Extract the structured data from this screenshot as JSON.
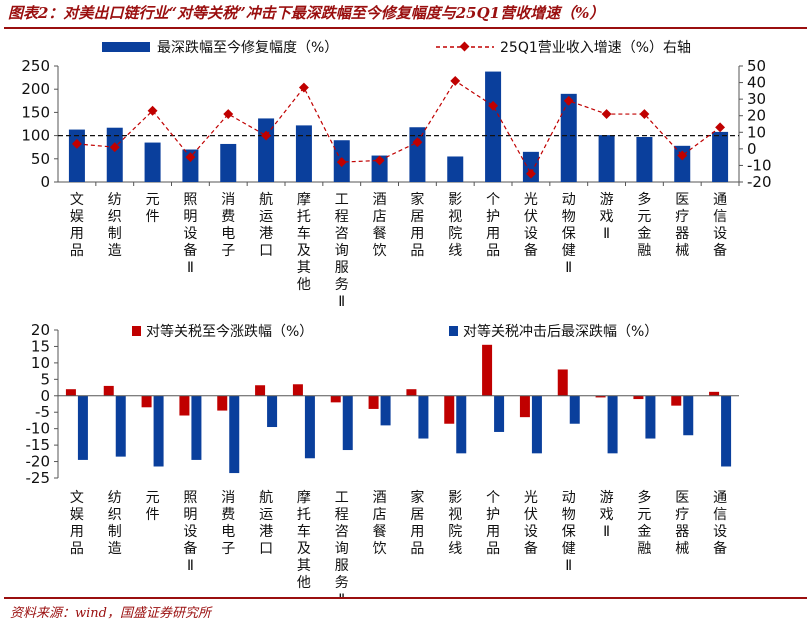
{
  "title": "图表2：对美出口链行业“对等关税”冲击下最深跌幅至今修复幅度与25Q1营收增速（%）",
  "source": "资料来源：wind，国盛证券研究所",
  "colors": {
    "bar_blue": "#0a3f9c",
    "bar_red": "#c00000",
    "line_red": "#c00000",
    "title": "#9a0f0f"
  },
  "chart_data": [
    {
      "type": "bar",
      "categories": [
        "文娱用品",
        "纺织制造",
        "元件",
        "照明设备Ⅱ",
        "消费电子",
        "航运港口",
        "摩托车及其他",
        "工程咨询服务Ⅱ",
        "酒店餐饮",
        "家居用品",
        "影视院线",
        "个护用品",
        "光伏设备",
        "动物保健Ⅱ",
        "游戏Ⅱ",
        "多元金融",
        "医疗器械",
        "通信设备"
      ],
      "series": [
        {
          "name": "最深跌幅至今修复幅度（%）",
          "axis": "left",
          "kind": "bar",
          "values": [
            113,
            117,
            85,
            70,
            82,
            137,
            122,
            90,
            57,
            118,
            55,
            238,
            65,
            190,
            101,
            97,
            78,
            108
          ]
        },
        {
          "name": "25Q1营业收入增速（%）右轴",
          "axis": "right",
          "kind": "line",
          "values": [
            3,
            1,
            23,
            -5,
            21,
            8,
            37,
            -8,
            -7,
            4,
            41,
            26,
            -15,
            29,
            21,
            21,
            -4,
            13
          ]
        }
      ],
      "ylim_left": [
        0,
        250
      ],
      "yticks_left": [
        0,
        50,
        100,
        150,
        200,
        250
      ],
      "ylim_right": [
        -20,
        50
      ],
      "yticks_right": [
        -20,
        -10,
        0,
        10,
        20,
        30,
        40,
        50
      ],
      "reference_line": {
        "axis": "left",
        "value": 100,
        "style": "dashed"
      },
      "legend_position": "top"
    },
    {
      "type": "bar",
      "categories": [
        "文娱用品",
        "纺织制造",
        "元件",
        "照明设备Ⅱ",
        "消费电子",
        "航运港口",
        "摩托车及其他",
        "工程咨询服务Ⅱ",
        "酒店餐饮",
        "家居用品",
        "影视院线",
        "个护用品",
        "光伏设备",
        "动物保健Ⅱ",
        "游戏Ⅱ",
        "多元金融",
        "医疗器械",
        "通信设备"
      ],
      "series": [
        {
          "name": "对等关税至今涨跌幅（%）",
          "color": "#c00000",
          "values": [
            2,
            3,
            -3.5,
            -6,
            -4.5,
            3.2,
            3.5,
            -2,
            -4,
            2,
            -8.5,
            15.5,
            -6.5,
            8,
            -0.5,
            -1,
            -3,
            1.2
          ]
        },
        {
          "name": "对等关税冲击后最深跌幅（%）",
          "color": "#0a3f9c",
          "values": [
            -19.5,
            -18.5,
            -21.5,
            -19.5,
            -23.5,
            -9.5,
            -19,
            -16.5,
            -9,
            -13,
            -17.5,
            -11,
            -17.5,
            -8.5,
            -17.5,
            -13,
            -12,
            -21.5
          ]
        }
      ],
      "ylim": [
        -25,
        20
      ],
      "yticks": [
        -25,
        -20,
        -15,
        -10,
        -5,
        0,
        5,
        10,
        15,
        20
      ],
      "legend_position": "top"
    }
  ]
}
